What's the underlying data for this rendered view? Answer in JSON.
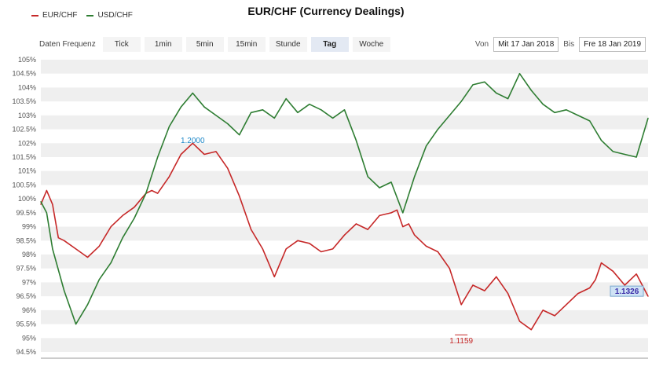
{
  "chart_data": {
    "type": "line",
    "title": "EUR/CHF (Currency Dealings)",
    "y_tick_labels": [
      "94.5%",
      "95%",
      "95.5%",
      "96%",
      "96.5%",
      "97%",
      "97.5%",
      "98%",
      "98.5%",
      "99%",
      "99.5%",
      "100%",
      "100.5%",
      "101%",
      "101.5%",
      "102%",
      "102.5%",
      "103%",
      "103.5%",
      "104%",
      "104.5%",
      "105%"
    ],
    "ylim": [
      94.5,
      105
    ],
    "x_range": [
      "Mit 17 Jan 2018",
      "Fre 18 Jan 2019"
    ],
    "grid": "horizontal bands",
    "legend_position": "top-left",
    "series": [
      {
        "name": "EUR/CHF",
        "color": "#c62828",
        "x": [
          0,
          0.5,
          1,
          1.5,
          2,
          3,
          4,
          5,
          6,
          7,
          8,
          9,
          9.5,
          10,
          11,
          12,
          13,
          14,
          15,
          16,
          17,
          18,
          19,
          20,
          21,
          22,
          23,
          24,
          25,
          26,
          27,
          28,
          29,
          30,
          30.5,
          31,
          31.5,
          32,
          33,
          34,
          35,
          36,
          37,
          38,
          39,
          40,
          41,
          42,
          43,
          44,
          45,
          46,
          47,
          47.5,
          48,
          49,
          50,
          51,
          52
        ],
        "values": [
          99.8,
          100.3,
          99.8,
          98.6,
          98.5,
          98.2,
          97.9,
          98.3,
          99.0,
          99.4,
          99.7,
          100.2,
          100.3,
          100.2,
          100.8,
          101.6,
          102.0,
          101.6,
          101.7,
          101.1,
          100.1,
          98.9,
          98.2,
          97.2,
          98.2,
          98.5,
          98.4,
          98.1,
          98.2,
          98.7,
          99.1,
          98.9,
          99.4,
          99.5,
          99.6,
          99.0,
          99.1,
          98.7,
          98.3,
          98.1,
          97.5,
          96.2,
          96.9,
          96.7,
          97.2,
          96.6,
          95.6,
          95.3,
          96.0,
          95.8,
          96.2,
          96.6,
          96.8,
          97.1,
          97.7,
          97.4,
          96.9,
          97.3,
          96.5
        ]
      },
      {
        "name": "USD/CHF",
        "color": "#2e7d32",
        "x": [
          0,
          0.5,
          1,
          2,
          3,
          4,
          5,
          6,
          7,
          8,
          9,
          10,
          11,
          12,
          13,
          14,
          15,
          16,
          17,
          18,
          19,
          20,
          21,
          22,
          23,
          24,
          25,
          26,
          27,
          28,
          29,
          30,
          31,
          32,
          33,
          34,
          35,
          36,
          37,
          38,
          39,
          40,
          41,
          42,
          43,
          44,
          45,
          46,
          47,
          48,
          49,
          50,
          51,
          52
        ],
        "values": [
          99.9,
          99.5,
          98.2,
          96.7,
          95.5,
          96.2,
          97.1,
          97.7,
          98.6,
          99.3,
          100.2,
          101.5,
          102.6,
          103.3,
          103.8,
          103.3,
          103.0,
          102.7,
          102.3,
          103.1,
          103.2,
          102.9,
          103.6,
          103.1,
          103.4,
          103.2,
          102.9,
          103.2,
          102.1,
          100.8,
          100.4,
          100.6,
          99.5,
          100.8,
          101.9,
          102.5,
          103.0,
          103.5,
          104.1,
          104.2,
          103.8,
          103.6,
          104.5,
          103.9,
          103.4,
          103.1,
          103.2,
          103.0,
          102.8,
          102.1,
          101.7,
          101.6,
          101.5,
          102.9
        ]
      }
    ],
    "annotations": [
      {
        "label": "1.2000",
        "series": "USD/CHF",
        "x": 13,
        "y": 101.9
      },
      {
        "label": "1.1159",
        "series": "EUR/CHF",
        "x": 36,
        "y": 95.2
      },
      {
        "label": "1.1326",
        "series": "EUR/CHF",
        "x": 52,
        "y": 96.5
      }
    ]
  },
  "controls": {
    "frequency_label": "Daten Frequenz",
    "buttons": [
      "Tick",
      "1min",
      "5min",
      "15min",
      "Stunde",
      "Tag",
      "Woche"
    ],
    "active": "Tag",
    "from_label": "Von",
    "from_value": "Mit 17 Jan 2018",
    "to_label": "Bis",
    "to_value": "Fre 18 Jan 2019"
  }
}
